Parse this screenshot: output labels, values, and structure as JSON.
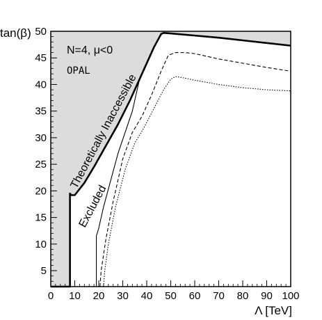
{
  "chart_data": {
    "type": "line",
    "xlabel": "Λ [TeV]",
    "ylabel": "tan(β)",
    "xlim": [
      0,
      100
    ],
    "ylim": [
      2,
      50
    ],
    "x_ticks": [
      0,
      10,
      20,
      30,
      40,
      50,
      60,
      70,
      80,
      90,
      100
    ],
    "y_ticks": [
      5,
      10,
      15,
      20,
      25,
      30,
      35,
      40,
      45,
      50
    ],
    "grid": false,
    "legend": "none",
    "annotations": {
      "model": "N=4, μ<0",
      "experiment": "OPAL",
      "theory_region": "Theoretically Inaccessible",
      "excluded_region": "Excluded"
    },
    "colors": {
      "inaccessible_fill": "#dcdcdc",
      "line": "#000000"
    },
    "series": [
      {
        "style": "thick",
        "role": "theoretical-boundary",
        "x": [
          0,
          8,
          8,
          8.5,
          10,
          14,
          18,
          23,
          28,
          33,
          38,
          43,
          46,
          47,
          50,
          60,
          70,
          80,
          90,
          100
        ],
        "y": [
          2,
          2,
          19.5,
          19.2,
          19.2,
          21.5,
          24.5,
          28.5,
          32.5,
          37,
          42,
          47,
          49.5,
          49.7,
          49.6,
          49.2,
          48.8,
          48.3,
          47.8,
          47.3
        ]
      },
      {
        "style": "solid",
        "role": "exclusion-limit",
        "x": [
          19,
          19,
          20,
          22,
          25,
          28,
          31,
          34,
          37
        ],
        "y": [
          2,
          11.5,
          13,
          17,
          22,
          27,
          31,
          35,
          41
        ]
      },
      {
        "style": "dashed",
        "role": "exclusion-limit",
        "x": [
          20.5,
          21,
          23,
          26,
          30,
          34,
          38,
          42,
          46,
          49,
          52,
          56,
          60,
          70,
          80,
          90,
          100
        ],
        "y": [
          2,
          5,
          11,
          18,
          26,
          31,
          34,
          38,
          42.5,
          45.5,
          46,
          46,
          45.8,
          44.8,
          44,
          43.2,
          42.5
        ]
      },
      {
        "style": "dotted",
        "role": "exclusion-limit",
        "x": [
          22,
          22.5,
          24,
          27,
          31,
          35,
          39,
          43,
          47,
          50,
          52,
          56,
          60,
          70,
          80,
          90,
          100
        ],
        "y": [
          2,
          5,
          10,
          17,
          24,
          29,
          32,
          35.5,
          39,
          41,
          41.5,
          41.2,
          40.8,
          40,
          39.4,
          39,
          38.8
        ]
      }
    ]
  }
}
